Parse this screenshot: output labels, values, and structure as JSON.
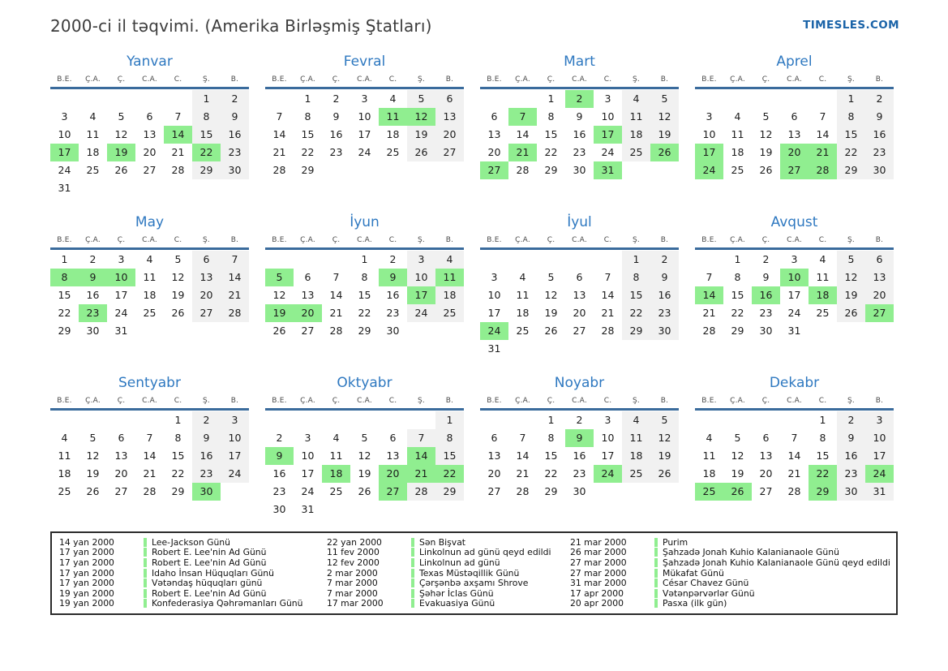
{
  "header": {
    "title": "2000-ci il təqvimi. (Amerika Birləşmiş Ştatları)",
    "site": "TIMESLES.COM"
  },
  "weekdays": [
    "B.E.",
    "Ç.A.",
    "Ç.",
    "C.A.",
    "C.",
    "Ş.",
    "B."
  ],
  "months": [
    {
      "name": "Yanvar",
      "start": 5,
      "days": 31,
      "highlighted": [
        14,
        17,
        19,
        22
      ]
    },
    {
      "name": "Fevral",
      "start": 1,
      "days": 29,
      "highlighted": [
        11,
        12
      ]
    },
    {
      "name": "Mart",
      "start": 2,
      "days": 31,
      "highlighted": [
        2,
        7,
        17,
        21,
        26,
        27,
        31
      ]
    },
    {
      "name": "Aprel",
      "start": 5,
      "days": 30,
      "highlighted": [
        17,
        20,
        21,
        24,
        27,
        28
      ]
    },
    {
      "name": "May",
      "start": 0,
      "days": 31,
      "highlighted": [
        8,
        9,
        10,
        23
      ]
    },
    {
      "name": "İyun",
      "start": 3,
      "days": 30,
      "highlighted": [
        5,
        9,
        11,
        17,
        19,
        20
      ]
    },
    {
      "name": "İyul",
      "start": 5,
      "days": 31,
      "highlighted": [
        24
      ]
    },
    {
      "name": "Avqust",
      "start": 1,
      "days": 31,
      "highlighted": [
        10,
        14,
        16,
        18,
        27
      ]
    },
    {
      "name": "Sentyabr",
      "start": 4,
      "days": 30,
      "highlighted": [
        30
      ]
    },
    {
      "name": "Oktyabr",
      "start": 6,
      "days": 31,
      "highlighted": [
        9,
        14,
        18,
        20,
        21,
        22,
        27
      ]
    },
    {
      "name": "Noyabr",
      "start": 2,
      "days": 30,
      "highlighted": [
        9,
        24
      ]
    },
    {
      "name": "Dekabr",
      "start": 4,
      "days": 31,
      "highlighted": [
        22,
        24,
        25,
        26,
        29
      ]
    }
  ],
  "legend": {
    "columns": [
      {
        "items": [
          {
            "date": "14 yan 2000",
            "name": "Lee-Jackson Günü"
          },
          {
            "date": "17 yan 2000",
            "name": "Robert E. Lee'nin Ad Günü"
          },
          {
            "date": "17 yan 2000",
            "name": "Robert E. Lee'nin Ad Günü"
          },
          {
            "date": "17 yan 2000",
            "name": "Idaho İnsan Hüquqları Günü"
          },
          {
            "date": "17 yan 2000",
            "name": "Vətəndaş hüquqları günü"
          },
          {
            "date": "19 yan 2000",
            "name": "Robert E. Lee'nin Ad Günü"
          },
          {
            "date": "19 yan 2000",
            "name": "Konfederasiya Qəhrəmanları Günü"
          }
        ]
      },
      {
        "items": [
          {
            "date": "22 yan 2000",
            "name": "Sən Bişvat"
          },
          {
            "date": "11 fev 2000",
            "name": "Linkolnun ad günü qeyd edildi"
          },
          {
            "date": "12 fev 2000",
            "name": "Linkolnun ad günü"
          },
          {
            "date": "2 mar 2000",
            "name": "Texas Müstəqillik Günü"
          },
          {
            "date": "7 mar 2000",
            "name": "Çərşənbə axşamı Shrove"
          },
          {
            "date": "7 mar 2000",
            "name": "Şəhər İclas Günü"
          },
          {
            "date": "17 mar 2000",
            "name": "Evakuasiya Günü"
          }
        ]
      },
      {
        "items": [
          {
            "date": "21 mar 2000",
            "name": "Purim"
          },
          {
            "date": "26 mar 2000",
            "name": "Şahzadə Jonah Kuhio Kalanianaole Günü"
          },
          {
            "date": "27 mar 2000",
            "name": "Şahzadə Jonah Kuhio Kalanianaole Günü qeyd edildi"
          },
          {
            "date": "27 mar 2000",
            "name": "Mükafat Günü"
          },
          {
            "date": "31 mar 2000",
            "name": "César Chavez Günü"
          },
          {
            "date": "17 apr 2000",
            "name": "Vətənpərvərlər Günü"
          },
          {
            "date": "20 apr 2000",
            "name": "Pasxa (ilk gün)"
          }
        ]
      }
    ]
  },
  "colors": {
    "holiday_highlight": "#90ee90",
    "weekend_background": "#f1f1f1",
    "month_title_blue": "#2e78c0",
    "header_rule_blue": "#3a6b9c",
    "site_link_blue": "#1a63a8"
  }
}
